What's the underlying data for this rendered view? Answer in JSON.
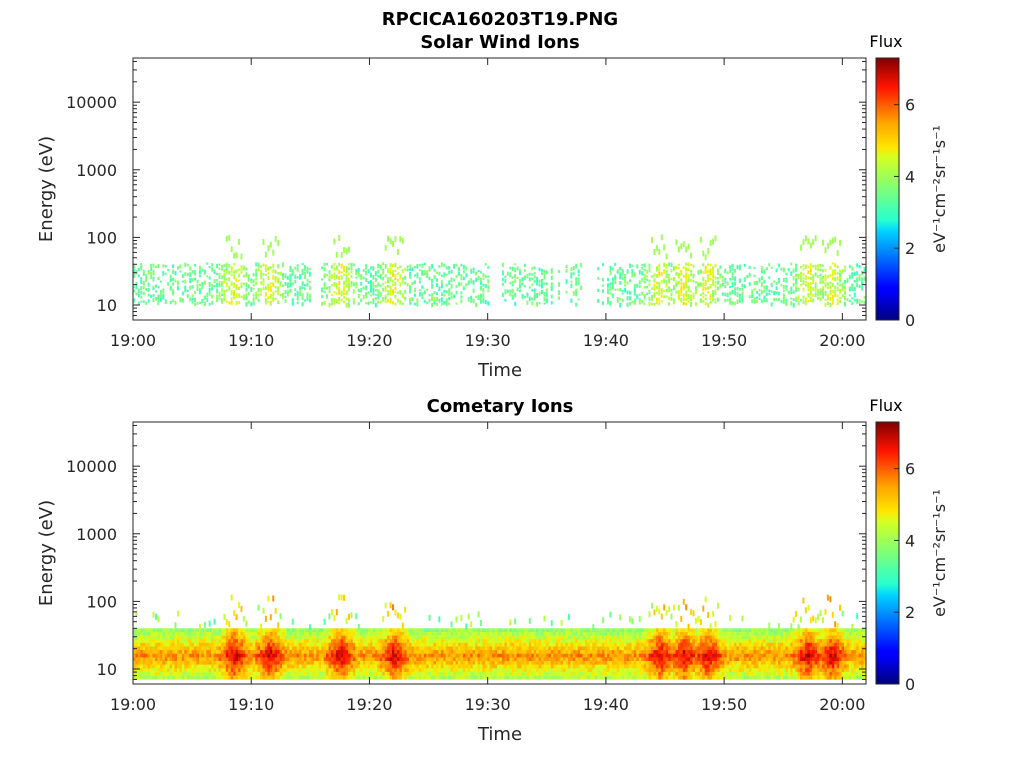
{
  "figure_title": "RPCICA160203T19.PNG",
  "chart_data": [
    {
      "type": "heatmap",
      "title": "Solar Wind Ions",
      "xlabel": "Time",
      "ylabel": "Energy (eV)",
      "x_ticks": [
        "19:00",
        "19:10",
        "19:20",
        "19:30",
        "19:40",
        "19:50",
        "20:00"
      ],
      "x_range": [
        "19:00",
        "20:02"
      ],
      "y_scale": "log",
      "y_ticks": [
        "10",
        "100",
        "1000",
        "10000"
      ],
      "y_range": [
        6,
        45000
      ],
      "colorbar": {
        "label": "Flux",
        "unit": "eV⁻¹cm⁻²sr⁻¹s⁻¹",
        "ticks": [
          "0",
          "2",
          "4",
          "6"
        ],
        "range": [
          0,
          7.3
        ],
        "colormap": "jet"
      },
      "grid": false,
      "description_band_energy_eV": [
        10,
        40
      ],
      "typical_flux": 3.5,
      "peak_flux": 4.7
    },
    {
      "type": "heatmap",
      "title": "Cometary Ions",
      "xlabel": "Time",
      "ylabel": "Energy (eV)",
      "x_ticks": [
        "19:00",
        "19:10",
        "19:20",
        "19:30",
        "19:40",
        "19:50",
        "20:00"
      ],
      "x_range": [
        "19:00",
        "20:02"
      ],
      "y_scale": "log",
      "y_ticks": [
        "10",
        "100",
        "1000",
        "10000"
      ],
      "y_range": [
        6,
        45000
      ],
      "colorbar": {
        "label": "Flux",
        "unit": "eV⁻¹cm⁻²sr⁻¹s⁻¹",
        "ticks": [
          "0",
          "2",
          "4",
          "6"
        ],
        "range": [
          0,
          7.3
        ],
        "colormap": "jet"
      },
      "grid": false,
      "description_band_energy_eV": [
        8,
        40
      ],
      "typical_flux": 5.0,
      "peak_flux": 6.5
    }
  ]
}
